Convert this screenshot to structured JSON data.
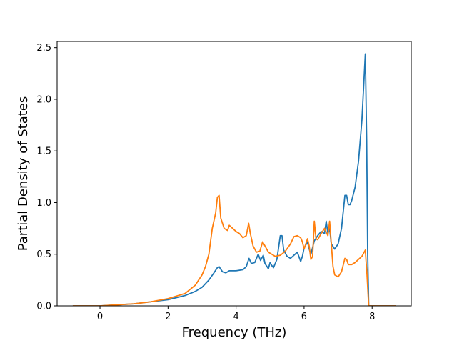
{
  "chart_data": {
    "type": "line",
    "xlabel": "Frequency (THz)",
    "ylabel": "Partial Density of States",
    "xlim": [
      -1.26,
      9.15
    ],
    "ylim": [
      0.0,
      2.56
    ],
    "xticks": [
      0,
      2,
      4,
      6,
      8
    ],
    "xtick_labels": [
      "0",
      "2",
      "4",
      "6",
      "8"
    ],
    "yticks": [
      0.0,
      0.5,
      1.0,
      1.5,
      2.0,
      2.5
    ],
    "ytick_labels": [
      "0.0",
      "0.5",
      "1.0",
      "1.5",
      "2.0",
      "2.5"
    ],
    "grid": false,
    "colors": [
      "#1f77b4",
      "#ff7f0e"
    ],
    "series": [
      {
        "x": [
          -0.8,
          0.0,
          0.5,
          1.0,
          1.5,
          2.0,
          2.5,
          2.8,
          3.0,
          3.2,
          3.35,
          3.45,
          3.5,
          3.6,
          3.7,
          3.8,
          4.0,
          4.2,
          4.3,
          4.38,
          4.45,
          4.55,
          4.65,
          4.72,
          4.8,
          4.85,
          4.95,
          5.0,
          5.05,
          5.1,
          5.2,
          5.3,
          5.35,
          5.4,
          5.5,
          5.6,
          5.8,
          5.9,
          5.95,
          6.0,
          6.1,
          6.15,
          6.2,
          6.3,
          6.4,
          6.5,
          6.6,
          6.65,
          6.7,
          6.75,
          6.8,
          6.9,
          7.0,
          7.1,
          7.2,
          7.25,
          7.3,
          7.35,
          7.4,
          7.5,
          7.6,
          7.7,
          7.8,
          7.84,
          7.87,
          7.9,
          8.0,
          8.7
        ],
        "y": [
          0.0,
          0.0,
          0.01,
          0.02,
          0.04,
          0.06,
          0.1,
          0.14,
          0.18,
          0.25,
          0.32,
          0.37,
          0.38,
          0.33,
          0.32,
          0.34,
          0.34,
          0.35,
          0.38,
          0.46,
          0.41,
          0.42,
          0.5,
          0.44,
          0.49,
          0.41,
          0.36,
          0.42,
          0.39,
          0.37,
          0.45,
          0.68,
          0.68,
          0.54,
          0.48,
          0.46,
          0.52,
          0.43,
          0.48,
          0.56,
          0.62,
          0.55,
          0.5,
          0.63,
          0.68,
          0.72,
          0.7,
          0.82,
          0.7,
          0.75,
          0.6,
          0.55,
          0.6,
          0.75,
          1.07,
          1.07,
          0.98,
          0.98,
          1.02,
          1.15,
          1.4,
          1.8,
          2.44,
          1.6,
          0.5,
          0.0,
          0.0,
          0.0
        ]
      },
      {
        "x": [
          -0.8,
          0.0,
          0.5,
          1.0,
          1.5,
          2.0,
          2.5,
          2.8,
          3.0,
          3.1,
          3.2,
          3.3,
          3.4,
          3.45,
          3.5,
          3.55,
          3.65,
          3.75,
          3.8,
          3.9,
          4.0,
          4.1,
          4.2,
          4.3,
          4.37,
          4.42,
          4.5,
          4.6,
          4.7,
          4.78,
          4.85,
          4.95,
          5.05,
          5.15,
          5.3,
          5.45,
          5.6,
          5.7,
          5.8,
          5.9,
          5.95,
          6.0,
          6.1,
          6.15,
          6.2,
          6.25,
          6.3,
          6.35,
          6.4,
          6.5,
          6.6,
          6.7,
          6.75,
          6.8,
          6.85,
          6.9,
          7.0,
          7.1,
          7.2,
          7.25,
          7.3,
          7.4,
          7.5,
          7.6,
          7.7,
          7.8,
          7.85,
          7.9,
          8.0,
          8.7
        ],
        "y": [
          0.0,
          0.0,
          0.01,
          0.02,
          0.04,
          0.07,
          0.12,
          0.2,
          0.3,
          0.38,
          0.5,
          0.75,
          0.9,
          1.05,
          1.07,
          0.85,
          0.75,
          0.73,
          0.78,
          0.75,
          0.72,
          0.7,
          0.66,
          0.68,
          0.8,
          0.7,
          0.58,
          0.52,
          0.53,
          0.62,
          0.58,
          0.52,
          0.5,
          0.48,
          0.49,
          0.53,
          0.6,
          0.67,
          0.68,
          0.66,
          0.62,
          0.55,
          0.65,
          0.58,
          0.45,
          0.48,
          0.82,
          0.65,
          0.64,
          0.7,
          0.75,
          0.68,
          0.82,
          0.6,
          0.38,
          0.3,
          0.28,
          0.33,
          0.46,
          0.45,
          0.4,
          0.4,
          0.42,
          0.45,
          0.48,
          0.54,
          0.3,
          0.0,
          0.0,
          0.0
        ]
      }
    ]
  }
}
